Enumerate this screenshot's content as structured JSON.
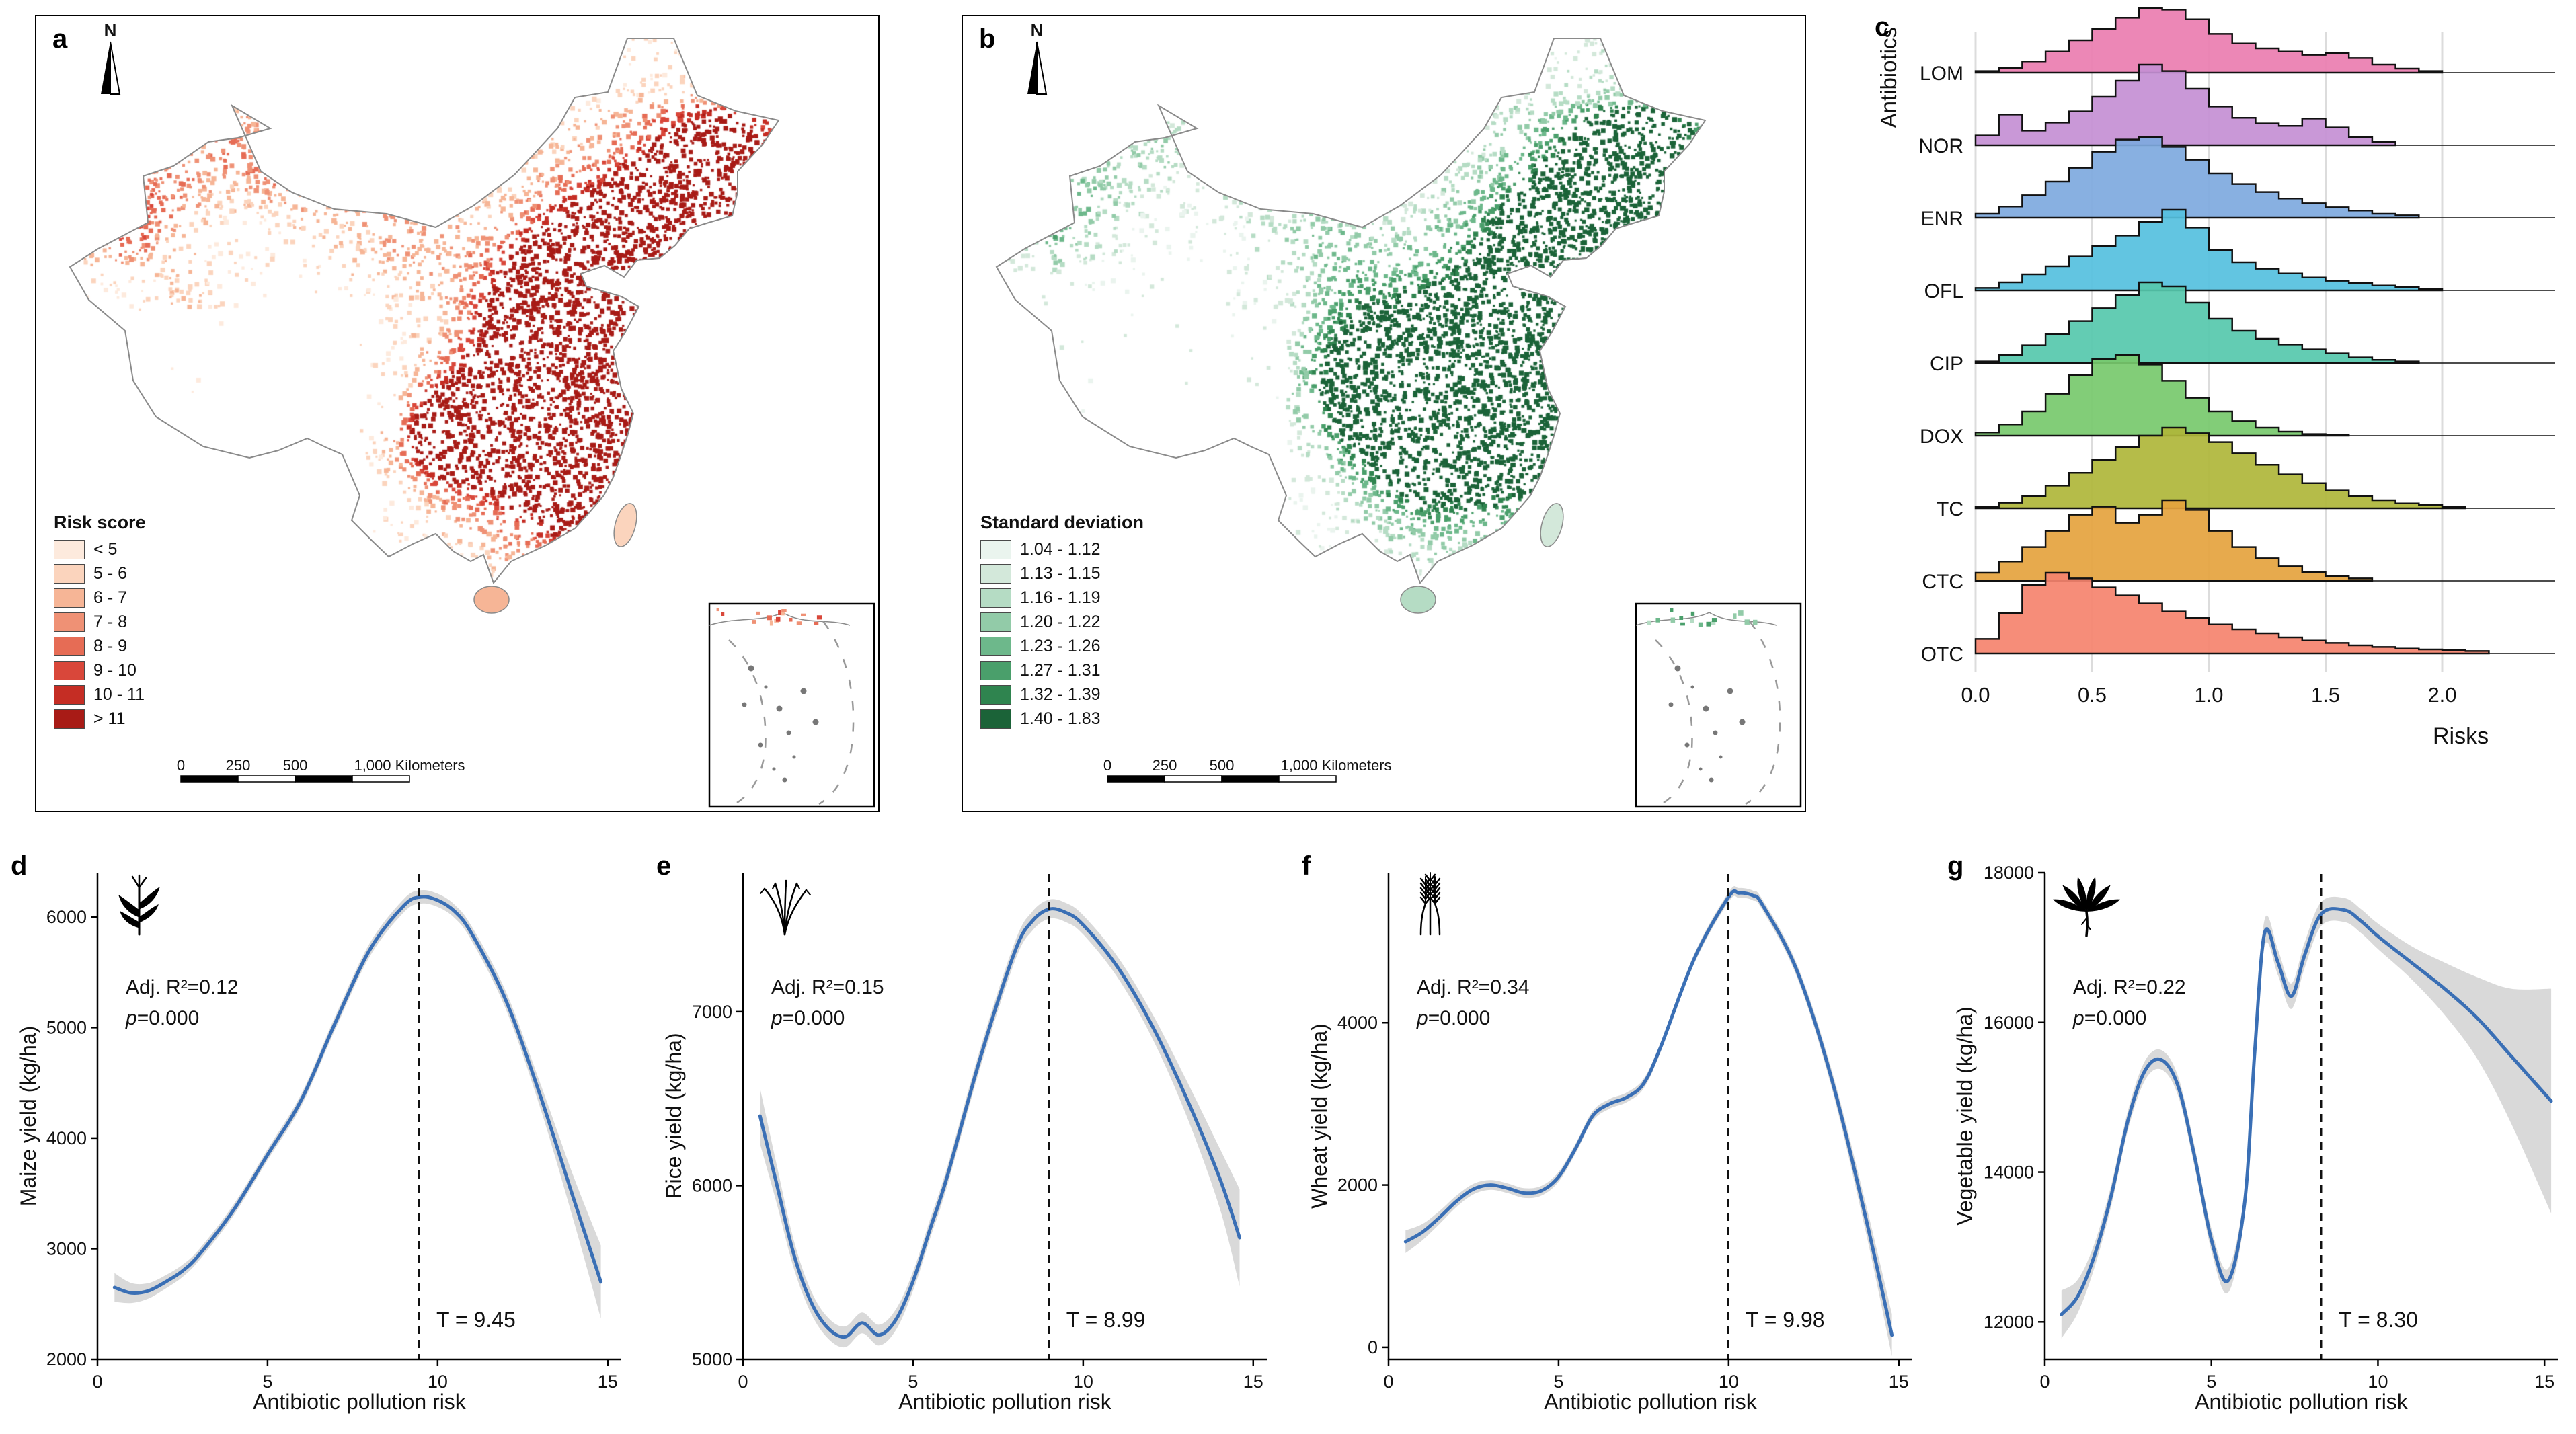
{
  "figure": {
    "panels": {
      "a": {
        "label": "a",
        "legend_title": "Risk score",
        "legend": [
          {
            "label": "< 5",
            "color": "#fdeadd"
          },
          {
            "label": "5 - 6",
            "color": "#fbd4bd"
          },
          {
            "label": "6 - 7",
            "color": "#f6b596"
          },
          {
            "label": "7 - 8",
            "color": "#ef9175"
          },
          {
            "label": "8 - 9",
            "color": "#e66c55"
          },
          {
            "label": "9 - 10",
            "color": "#d9473a"
          },
          {
            "label": "10 - 11",
            "color": "#c52d24"
          },
          {
            "label": "> 11",
            "color": "#a81b16"
          }
        ],
        "scalebar": {
          "labels": [
            "0",
            "250",
            "500"
          ],
          "end_label": "1,000 Kilometers"
        },
        "north_label": "N"
      },
      "b": {
        "label": "b",
        "legend_title": "Standard deviation",
        "legend": [
          {
            "label": "1.04 - 1.12",
            "color": "#eaf4ee"
          },
          {
            "label": "1.13 - 1.15",
            "color": "#d3e8da"
          },
          {
            "label": "1.16 - 1.19",
            "color": "#b5dcc4"
          },
          {
            "label": "1.20 - 1.22",
            "color": "#92cba8"
          },
          {
            "label": "1.23 - 1.26",
            "color": "#6db88b"
          },
          {
            "label": "1.27 - 1.31",
            "color": "#4a9f6b"
          },
          {
            "label": "1.32 - 1.39",
            "color": "#2f844f"
          },
          {
            "label": "1.40 - 1.83",
            "color": "#1b6338"
          }
        ],
        "scalebar": {
          "labels": [
            "0",
            "250",
            "500"
          ],
          "end_label": "1,000 Kilometers"
        },
        "north_label": "N"
      },
      "c": {
        "label": "c"
      },
      "d": {
        "label": "d"
      },
      "e": {
        "label": "e"
      },
      "f": {
        "label": "f"
      },
      "g": {
        "label": "g"
      }
    }
  },
  "chart_data": [
    {
      "id": "c",
      "type": "ridgeline",
      "xlabel": "Risks",
      "ylabel": "Antibiotics",
      "xlim": [
        0,
        2.4
      ],
      "xticks": [
        0,
        0.5,
        1,
        1.5,
        2
      ],
      "xtick_labels": [
        "0.0",
        "0.5",
        "1.0",
        "1.5",
        "2.0"
      ],
      "series": [
        {
          "name": "LOM",
          "color": "#ea7db0",
          "x0": 0,
          "dx": 0.1,
          "bins": [
            0.02,
            0.06,
            0.14,
            0.26,
            0.4,
            0.54,
            0.68,
            0.8,
            0.78,
            0.66,
            0.48,
            0.36,
            0.3,
            0.26,
            0.22,
            0.24,
            0.18,
            0.1,
            0.05,
            0.02
          ]
        },
        {
          "name": "NOR",
          "color": "#c48fd4",
          "x0": 0,
          "dx": 0.1,
          "bins": [
            0.12,
            0.38,
            0.18,
            0.28,
            0.42,
            0.6,
            0.8,
            1.0,
            0.92,
            0.7,
            0.48,
            0.34,
            0.27,
            0.24,
            0.33,
            0.22,
            0.1,
            0.04
          ]
        },
        {
          "name": "ENR",
          "color": "#7ea9de",
          "x0": 0,
          "dx": 0.1,
          "bins": [
            0.05,
            0.14,
            0.28,
            0.45,
            0.62,
            0.82,
            0.97,
            1.0,
            0.88,
            0.72,
            0.55,
            0.42,
            0.32,
            0.24,
            0.18,
            0.13,
            0.09,
            0.05,
            0.03
          ]
        },
        {
          "name": "OFL",
          "color": "#55c0de",
          "x0": 0,
          "dx": 0.1,
          "bins": [
            0.03,
            0.1,
            0.2,
            0.3,
            0.42,
            0.55,
            0.68,
            0.85,
            1.0,
            0.78,
            0.5,
            0.35,
            0.27,
            0.21,
            0.16,
            0.12,
            0.09,
            0.06,
            0.04,
            0.02
          ]
        },
        {
          "name": "CIP",
          "color": "#56c8ac",
          "x0": 0,
          "dx": 0.1,
          "bins": [
            0.02,
            0.1,
            0.22,
            0.36,
            0.52,
            0.68,
            0.84,
            1.0,
            0.95,
            0.75,
            0.55,
            0.4,
            0.3,
            0.23,
            0.17,
            0.12,
            0.07,
            0.04,
            0.02
          ]
        },
        {
          "name": "DOX",
          "color": "#77c96d",
          "x0": 0,
          "dx": 0.1,
          "bins": [
            0.04,
            0.14,
            0.3,
            0.52,
            0.75,
            0.95,
            1.0,
            0.88,
            0.68,
            0.47,
            0.3,
            0.18,
            0.1,
            0.05,
            0.02,
            0.01
          ]
        },
        {
          "name": "TC",
          "color": "#afb63a",
          "x0": 0,
          "dx": 0.1,
          "bins": [
            0.02,
            0.07,
            0.15,
            0.28,
            0.44,
            0.6,
            0.76,
            0.9,
            1.0,
            0.93,
            0.82,
            0.68,
            0.54,
            0.42,
            0.31,
            0.22,
            0.15,
            0.1,
            0.06,
            0.04,
            0.02
          ]
        },
        {
          "name": "CTC",
          "color": "#e5a33e",
          "x0": 0,
          "dx": 0.1,
          "bins": [
            0.1,
            0.24,
            0.42,
            0.62,
            0.82,
            0.92,
            0.72,
            0.82,
            1.0,
            0.88,
            0.62,
            0.42,
            0.28,
            0.18,
            0.11,
            0.06,
            0.03
          ]
        },
        {
          "name": "OTC",
          "color": "#f5836e",
          "x0": 0,
          "dx": 0.1,
          "bins": [
            0.18,
            0.5,
            0.85,
            1.0,
            0.93,
            0.82,
            0.72,
            0.62,
            0.52,
            0.44,
            0.36,
            0.3,
            0.25,
            0.2,
            0.16,
            0.13,
            0.1,
            0.08,
            0.06,
            0.05,
            0.04,
            0.03
          ]
        }
      ]
    },
    {
      "id": "d",
      "type": "line",
      "xlabel": "Antibiotic pollution risk",
      "ylabel": "Maize yield (kg/ha)",
      "icon": "maize-icon",
      "line_color": "#3a6fb5",
      "band_color": "#bfbfbf",
      "xlim": [
        0,
        15.4
      ],
      "ylim": [
        2000,
        6400
      ],
      "xticks": [
        0,
        5,
        10,
        15
      ],
      "yticks": [
        2000,
        3000,
        4000,
        5000,
        6000
      ],
      "x": [
        0.5,
        1,
        1.5,
        2,
        2.5,
        3,
        4,
        5,
        6,
        7,
        8,
        9,
        9.5,
        10,
        10.5,
        11,
        12,
        13,
        14,
        14.8
      ],
      "y": [
        2650,
        2600,
        2620,
        2700,
        2800,
        2950,
        3350,
        3850,
        4350,
        5050,
        5700,
        6100,
        6180,
        6150,
        6050,
        5850,
        5250,
        4400,
        3450,
        2700
      ],
      "band": [
        130,
        90,
        70,
        60,
        55,
        50,
        50,
        50,
        55,
        60,
        60,
        60,
        60,
        60,
        60,
        65,
        80,
        110,
        200,
        330
      ],
      "annotations": {
        "r2": "Adj. R²=0.12",
        "p": "p=0.000",
        "t_label": "T = 9.45",
        "t_value": 9.45
      }
    },
    {
      "id": "e",
      "type": "line",
      "xlabel": "Antibiotic pollution risk",
      "ylabel": "Rice yield (kg/ha)",
      "icon": "rice-icon",
      "line_color": "#3a6fb5",
      "band_color": "#bfbfbf",
      "xlim": [
        0,
        15.4
      ],
      "ylim": [
        5000,
        7800
      ],
      "xticks": [
        0,
        5,
        10,
        15
      ],
      "yticks": [
        5000,
        6000,
        7000
      ],
      "x": [
        0.5,
        1,
        1.5,
        2,
        2.5,
        3,
        3.5,
        4,
        4.5,
        5,
        5.5,
        6,
        7,
        8,
        8.5,
        9,
        9.5,
        10,
        11,
        12,
        13,
        14,
        14.6
      ],
      "y": [
        6400,
        6000,
        5600,
        5330,
        5180,
        5130,
        5210,
        5140,
        5230,
        5450,
        5750,
        6050,
        6750,
        7350,
        7520,
        7590,
        7570,
        7500,
        7260,
        6930,
        6520,
        6050,
        5700
      ],
      "band": [
        160,
        110,
        80,
        65,
        60,
        60,
        60,
        60,
        60,
        55,
        55,
        55,
        55,
        55,
        55,
        55,
        55,
        55,
        60,
        70,
        100,
        170,
        280
      ],
      "annotations": {
        "r2": "Adj. R²=0.15",
        "p": "p=0.000",
        "t_label": "T = 8.99",
        "t_value": 8.99
      }
    },
    {
      "id": "f",
      "type": "line",
      "xlabel": "Antibiotic pollution risk",
      "ylabel": "Wheat yield (kg/ha)",
      "icon": "wheat-icon",
      "line_color": "#3a6fb5",
      "band_color": "#bfbfbf",
      "xlim": [
        0,
        15.4
      ],
      "ylim": [
        -150,
        5850
      ],
      "xticks": [
        0,
        5,
        10,
        15
      ],
      "yticks": [
        0,
        2000,
        4000
      ],
      "x": [
        0.5,
        1,
        1.5,
        2,
        2.5,
        3,
        3.5,
        4,
        4.5,
        5,
        5.5,
        6,
        6.5,
        7,
        7.5,
        8,
        9,
        10,
        10.3,
        10.7,
        11,
        12,
        13,
        14,
        14.8
      ],
      "y": [
        1300,
        1420,
        1600,
        1800,
        1950,
        2000,
        1960,
        1900,
        1930,
        2100,
        2450,
        2850,
        3000,
        3080,
        3250,
        3700,
        4800,
        5550,
        5600,
        5570,
        5450,
        4650,
        3350,
        1650,
        150
      ],
      "band": [
        140,
        100,
        80,
        70,
        65,
        60,
        60,
        60,
        60,
        60,
        60,
        60,
        60,
        60,
        60,
        60,
        60,
        60,
        60,
        60,
        65,
        80,
        110,
        170,
        260
      ],
      "annotations": {
        "r2": "Adj. R²=0.34",
        "p": "p=0.000",
        "t_label": "T = 9.98",
        "t_value": 9.98
      }
    },
    {
      "id": "g",
      "type": "line",
      "xlabel": "Antibiotic pollution risk",
      "ylabel": "Vegetable yield (kg/ha)",
      "icon": "vegetable-icon",
      "line_color": "#3a6fb5",
      "band_color": "#bfbfbf",
      "xlim": [
        0,
        15.4
      ],
      "ylim": [
        11500,
        18000
      ],
      "xticks": [
        0,
        5,
        10,
        15
      ],
      "yticks": [
        12000,
        14000,
        16000,
        18000
      ],
      "x": [
        0.5,
        1,
        1.5,
        2,
        2.5,
        3,
        3.5,
        4,
        4.5,
        5,
        5.5,
        6,
        6.3,
        6.6,
        7,
        7.4,
        7.8,
        8.3,
        9,
        9.5,
        10,
        11,
        12,
        13,
        14,
        15.2
      ],
      "y": [
        12100,
        12350,
        12900,
        13700,
        14700,
        15350,
        15500,
        15150,
        14200,
        13100,
        12550,
        13600,
        15600,
        17200,
        16800,
        16350,
        16900,
        17450,
        17500,
        17350,
        17150,
        16800,
        16450,
        16050,
        15550,
        14950
      ],
      "band": [
        320,
        220,
        160,
        140,
        130,
        130,
        130,
        130,
        140,
        150,
        160,
        170,
        180,
        180,
        170,
        170,
        170,
        160,
        160,
        160,
        170,
        220,
        350,
        550,
        900,
        1500
      ],
      "annotations": {
        "r2": "Adj. R²=0.22",
        "p": "p=0.000",
        "t_label": "T = 8.30",
        "t_value": 8.3
      }
    }
  ]
}
